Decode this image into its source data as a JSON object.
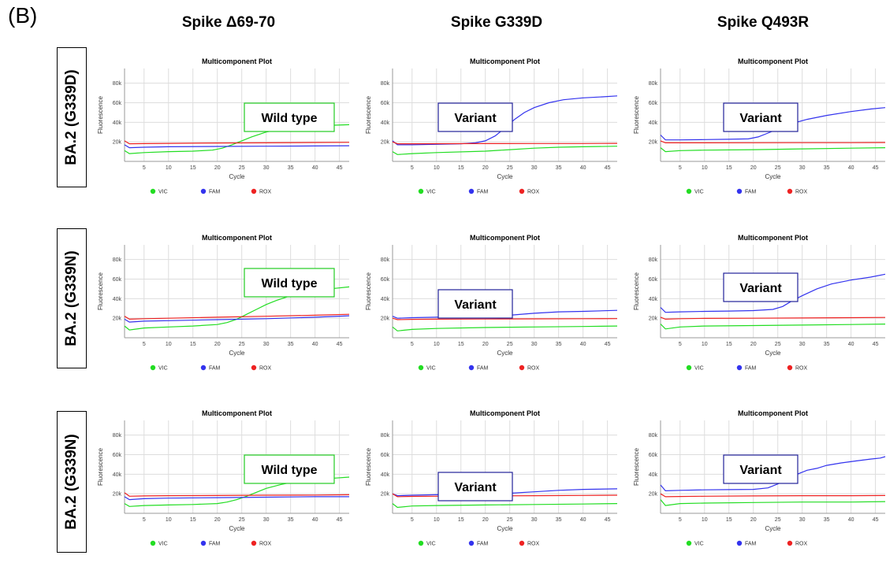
{
  "panel_label": "(B)",
  "columns": [
    "Spike Δ69-70",
    "Spike G339D",
    "Spike Q493R"
  ],
  "rows": [
    "BA.2 (G339D)",
    "BA.2 (G339N)",
    "BA.2 (G339N)"
  ],
  "colors": {
    "VIC": "#22dd22",
    "FAM": "#3333ee",
    "ROX": "#ee2222",
    "wild_box": "#22cc22",
    "variant_box": "#222299"
  },
  "chart_data": [
    {
      "type": "line",
      "title": "Multicomponent Plot",
      "xlabel": "Cycle",
      "ylabel": "Fluorescence",
      "xlim": [
        1,
        47
      ],
      "ylim": [
        0,
        95000
      ],
      "xticks": [
        5,
        10,
        15,
        20,
        25,
        30,
        35,
        40,
        45
      ],
      "yticks": [
        "20k",
        "40k",
        "60k",
        "80k"
      ],
      "grid": true,
      "legend": [
        "VIC",
        "FAM",
        "ROX"
      ],
      "annotation": "Wild type",
      "series": [
        {
          "name": "VIC",
          "x": [
            1,
            2,
            5,
            10,
            15,
            19,
            21,
            23,
            25,
            27,
            30,
            33,
            36,
            40,
            44,
            47
          ],
          "y": [
            11000,
            8000,
            9000,
            10000,
            10500,
            11500,
            13500,
            17000,
            21000,
            25000,
            30000,
            33000,
            35000,
            36500,
            37000,
            37500
          ]
        },
        {
          "name": "FAM",
          "x": [
            1,
            2,
            5,
            10,
            20,
            30,
            40,
            47
          ],
          "y": [
            17000,
            14000,
            14500,
            15000,
            15300,
            15500,
            15800,
            16000
          ]
        },
        {
          "name": "ROX",
          "x": [
            1,
            2,
            5,
            10,
            20,
            30,
            40,
            47
          ],
          "y": [
            21000,
            18000,
            18200,
            18400,
            18800,
            19000,
            19300,
            19500
          ]
        }
      ]
    },
    {
      "type": "line",
      "title": "Multicomponent Plot",
      "xlabel": "Cycle",
      "ylabel": "Fluorescence",
      "xlim": [
        1,
        47
      ],
      "ylim": [
        0,
        95000
      ],
      "xticks": [
        5,
        10,
        15,
        20,
        25,
        30,
        35,
        40,
        45
      ],
      "yticks": [
        "20k",
        "40k",
        "60k",
        "80k"
      ],
      "grid": true,
      "legend": [
        "VIC",
        "FAM",
        "ROX"
      ],
      "annotation": "Variant",
      "series": [
        {
          "name": "VIC",
          "x": [
            1,
            2,
            5,
            10,
            20,
            25,
            30,
            35,
            40,
            47
          ],
          "y": [
            10000,
            7000,
            8000,
            9000,
            10500,
            12000,
            13500,
            14500,
            15000,
            15500
          ]
        },
        {
          "name": "FAM",
          "x": [
            1,
            2,
            5,
            10,
            15,
            18,
            20,
            22,
            24,
            26,
            28,
            30,
            33,
            36,
            40,
            44,
            47
          ],
          "y": [
            21000,
            17000,
            17000,
            17500,
            18000,
            19000,
            21000,
            26000,
            34000,
            43000,
            50000,
            55000,
            60000,
            63000,
            65000,
            66000,
            67000
          ]
        },
        {
          "name": "ROX",
          "x": [
            1,
            2,
            5,
            10,
            20,
            30,
            40,
            47
          ],
          "y": [
            20000,
            18000,
            18000,
            18100,
            18200,
            18300,
            18300,
            18400
          ]
        }
      ]
    },
    {
      "type": "line",
      "title": "Multicomponent Plot",
      "xlabel": "Cycle",
      "ylabel": "Fluorescence",
      "xlim": [
        1,
        47
      ],
      "ylim": [
        0,
        95000
      ],
      "xticks": [
        5,
        10,
        15,
        20,
        25,
        30,
        35,
        40,
        45
      ],
      "yticks": [
        "20k",
        "40k",
        "60k",
        "80k"
      ],
      "grid": true,
      "legend": [
        "VIC",
        "FAM",
        "ROX"
      ],
      "annotation": "Variant",
      "series": [
        {
          "name": "VIC",
          "x": [
            1,
            2,
            5,
            10,
            20,
            30,
            40,
            47
          ],
          "y": [
            14000,
            10000,
            11000,
            11500,
            12000,
            12800,
            13500,
            14000
          ]
        },
        {
          "name": "FAM",
          "x": [
            1,
            2,
            5,
            10,
            15,
            19,
            21,
            23,
            25,
            28,
            31,
            35,
            40,
            44,
            47
          ],
          "y": [
            27000,
            22000,
            22000,
            22300,
            22600,
            23000,
            25000,
            29000,
            33000,
            39000,
            43000,
            47000,
            51000,
            53500,
            55000
          ]
        },
        {
          "name": "ROX",
          "x": [
            1,
            2,
            5,
            10,
            20,
            30,
            40,
            47
          ],
          "y": [
            21000,
            19000,
            19000,
            19000,
            19100,
            19200,
            19200,
            19300
          ]
        }
      ]
    },
    {
      "type": "line",
      "title": "Multicomponent Plot",
      "xlabel": "Cycle",
      "ylabel": "Fluorescence",
      "xlim": [
        1,
        47
      ],
      "ylim": [
        0,
        95000
      ],
      "xticks": [
        5,
        10,
        15,
        20,
        25,
        30,
        35,
        40,
        45
      ],
      "yticks": [
        "20k",
        "40k",
        "60k",
        "80k"
      ],
      "grid": true,
      "legend": [
        "VIC",
        "FAM",
        "ROX"
      ],
      "annotation": "Wild type",
      "series": [
        {
          "name": "VIC",
          "x": [
            1,
            2,
            5,
            10,
            15,
            20,
            22,
            24,
            26,
            28,
            30,
            32,
            35,
            38,
            41,
            44,
            47
          ],
          "y": [
            12000,
            8000,
            10000,
            11000,
            12000,
            13500,
            15500,
            19000,
            24000,
            29000,
            34000,
            38000,
            43000,
            46500,
            49000,
            50500,
            52000
          ]
        },
        {
          "name": "FAM",
          "x": [
            1,
            2,
            5,
            10,
            20,
            30,
            40,
            47
          ],
          "y": [
            19000,
            16000,
            17000,
            17500,
            18500,
            19500,
            21000,
            22500
          ]
        },
        {
          "name": "ROX",
          "x": [
            1,
            2,
            5,
            10,
            20,
            30,
            40,
            47
          ],
          "y": [
            22000,
            19000,
            19500,
            20000,
            21000,
            22000,
            23000,
            24000
          ]
        }
      ]
    },
    {
      "type": "line",
      "title": "Multicomponent Plot",
      "xlabel": "Cycle",
      "ylabel": "Fluorescence",
      "xlim": [
        1,
        47
      ],
      "ylim": [
        0,
        95000
      ],
      "xticks": [
        5,
        10,
        15,
        20,
        25,
        30,
        35,
        40,
        45
      ],
      "yticks": [
        "20k",
        "40k",
        "60k",
        "80k"
      ],
      "grid": true,
      "legend": [
        "VIC",
        "FAM",
        "ROX"
      ],
      "annotation": "Variant",
      "series": [
        {
          "name": "VIC",
          "x": [
            1,
            2,
            5,
            10,
            20,
            30,
            40,
            47
          ],
          "y": [
            11000,
            7000,
            8500,
            9500,
            10500,
            11000,
            11500,
            12000
          ]
        },
        {
          "name": "FAM",
          "x": [
            1,
            2,
            5,
            10,
            20,
            25,
            30,
            35,
            40,
            47
          ],
          "y": [
            22000,
            20000,
            20500,
            21000,
            22000,
            23000,
            25000,
            26500,
            27000,
            28000
          ]
        },
        {
          "name": "ROX",
          "x": [
            1,
            2,
            5,
            10,
            20,
            30,
            40,
            47
          ],
          "y": [
            20000,
            18500,
            18800,
            19000,
            19200,
            19300,
            19500,
            19600
          ]
        }
      ]
    },
    {
      "type": "line",
      "title": "Multicomponent Plot",
      "xlabel": "Cycle",
      "ylabel": "Fluorescence",
      "xlim": [
        1,
        47
      ],
      "ylim": [
        0,
        95000
      ],
      "xticks": [
        5,
        10,
        15,
        20,
        25,
        30,
        35,
        40,
        45
      ],
      "yticks": [
        "20k",
        "40k",
        "60k",
        "80k"
      ],
      "grid": true,
      "legend": [
        "VIC",
        "FAM",
        "ROX"
      ],
      "annotation": "Variant",
      "series": [
        {
          "name": "VIC",
          "x": [
            1,
            2,
            5,
            10,
            20,
            30,
            40,
            47
          ],
          "y": [
            14000,
            9000,
            11000,
            12000,
            12500,
            13000,
            13500,
            14000
          ]
        },
        {
          "name": "FAM",
          "x": [
            1,
            2,
            5,
            10,
            15,
            20,
            24,
            26,
            28,
            30,
            33,
            36,
            40,
            44,
            47
          ],
          "y": [
            31000,
            26000,
            26500,
            27000,
            27300,
            27800,
            29000,
            32000,
            38000,
            43000,
            50000,
            55000,
            59000,
            62000,
            65000
          ]
        },
        {
          "name": "ROX",
          "x": [
            1,
            2,
            5,
            10,
            20,
            30,
            40,
            47
          ],
          "y": [
            21000,
            19000,
            19500,
            19800,
            20000,
            20200,
            20500,
            20800
          ]
        }
      ]
    },
    {
      "type": "line",
      "title": "Multicomponent Plot",
      "xlabel": "Cycle",
      "ylabel": "Fluorescence",
      "xlim": [
        1,
        47
      ],
      "ylim": [
        0,
        95000
      ],
      "xticks": [
        5,
        10,
        15,
        20,
        25,
        30,
        35,
        40,
        45
      ],
      "yticks": [
        "20k",
        "40k",
        "60k",
        "80k"
      ],
      "grid": true,
      "legend": [
        "VIC",
        "FAM",
        "ROX"
      ],
      "annotation": "Wild type",
      "series": [
        {
          "name": "VIC",
          "x": [
            1,
            2,
            5,
            10,
            15,
            20,
            22,
            24,
            26,
            28,
            30,
            33,
            36,
            40,
            44,
            47
          ],
          "y": [
            10000,
            7000,
            8000,
            8500,
            9000,
            10000,
            11500,
            14000,
            17500,
            21500,
            25500,
            29500,
            32500,
            35000,
            36000,
            37000
          ]
        },
        {
          "name": "FAM",
          "x": [
            1,
            2,
            5,
            10,
            20,
            30,
            40,
            47
          ],
          "y": [
            17000,
            14000,
            15000,
            15500,
            16000,
            16500,
            17000,
            17000
          ]
        },
        {
          "name": "ROX",
          "x": [
            1,
            2,
            5,
            10,
            20,
            30,
            40,
            47
          ],
          "y": [
            21000,
            17500,
            17800,
            18000,
            18200,
            18500,
            18700,
            19000
          ]
        }
      ]
    },
    {
      "type": "line",
      "title": "Multicomponent Plot",
      "xlabel": "Cycle",
      "ylabel": "Fluorescence",
      "xlim": [
        1,
        47
      ],
      "ylim": [
        0,
        95000
      ],
      "xticks": [
        5,
        10,
        15,
        20,
        25,
        30,
        35,
        40,
        45
      ],
      "yticks": [
        "20k",
        "40k",
        "60k",
        "80k"
      ],
      "grid": true,
      "legend": [
        "VIC",
        "FAM",
        "ROX"
      ],
      "annotation": "Variant",
      "series": [
        {
          "name": "VIC",
          "x": [
            1,
            2,
            5,
            10,
            20,
            30,
            40,
            47
          ],
          "y": [
            10000,
            6000,
            7500,
            8000,
            8500,
            9000,
            9500,
            10000
          ]
        },
        {
          "name": "FAM",
          "x": [
            1,
            2,
            5,
            10,
            20,
            25,
            30,
            35,
            40,
            47
          ],
          "y": [
            20000,
            18000,
            18500,
            19000,
            19500,
            20500,
            22000,
            23500,
            24500,
            25000
          ]
        },
        {
          "name": "ROX",
          "x": [
            1,
            2,
            5,
            10,
            20,
            30,
            40,
            47
          ],
          "y": [
            20000,
            17000,
            17300,
            17500,
            17800,
            18000,
            18300,
            18500
          ]
        }
      ]
    },
    {
      "type": "line",
      "title": "Multicomponent Plot",
      "xlabel": "Cycle",
      "ylabel": "Fluorescence",
      "xlim": [
        1,
        47
      ],
      "ylim": [
        0,
        95000
      ],
      "xticks": [
        5,
        10,
        15,
        20,
        25,
        30,
        35,
        40,
        45
      ],
      "yticks": [
        "20k",
        "40k",
        "60k",
        "80k"
      ],
      "grid": true,
      "legend": [
        "VIC",
        "FAM",
        "ROX"
      ],
      "annotation": "Variant",
      "series": [
        {
          "name": "VIC",
          "x": [
            1,
            2,
            5,
            10,
            20,
            30,
            40,
            47
          ],
          "y": [
            14000,
            8000,
            10000,
            10500,
            11000,
            11500,
            11500,
            12000
          ]
        },
        {
          "name": "FAM",
          "x": [
            1,
            2,
            5,
            10,
            15,
            20,
            23,
            25,
            27,
            29,
            31,
            33,
            35,
            38,
            41,
            44,
            46,
            47
          ],
          "y": [
            29000,
            23000,
            23500,
            24000,
            24200,
            24500,
            26000,
            30000,
            35000,
            40000,
            44000,
            46000,
            49000,
            51500,
            53500,
            55500,
            56500,
            58000
          ]
        },
        {
          "name": "ROX",
          "x": [
            1,
            2,
            5,
            10,
            20,
            30,
            40,
            47
          ],
          "y": [
            20000,
            17000,
            17200,
            17500,
            17800,
            18000,
            18000,
            18200
          ]
        }
      ]
    }
  ]
}
